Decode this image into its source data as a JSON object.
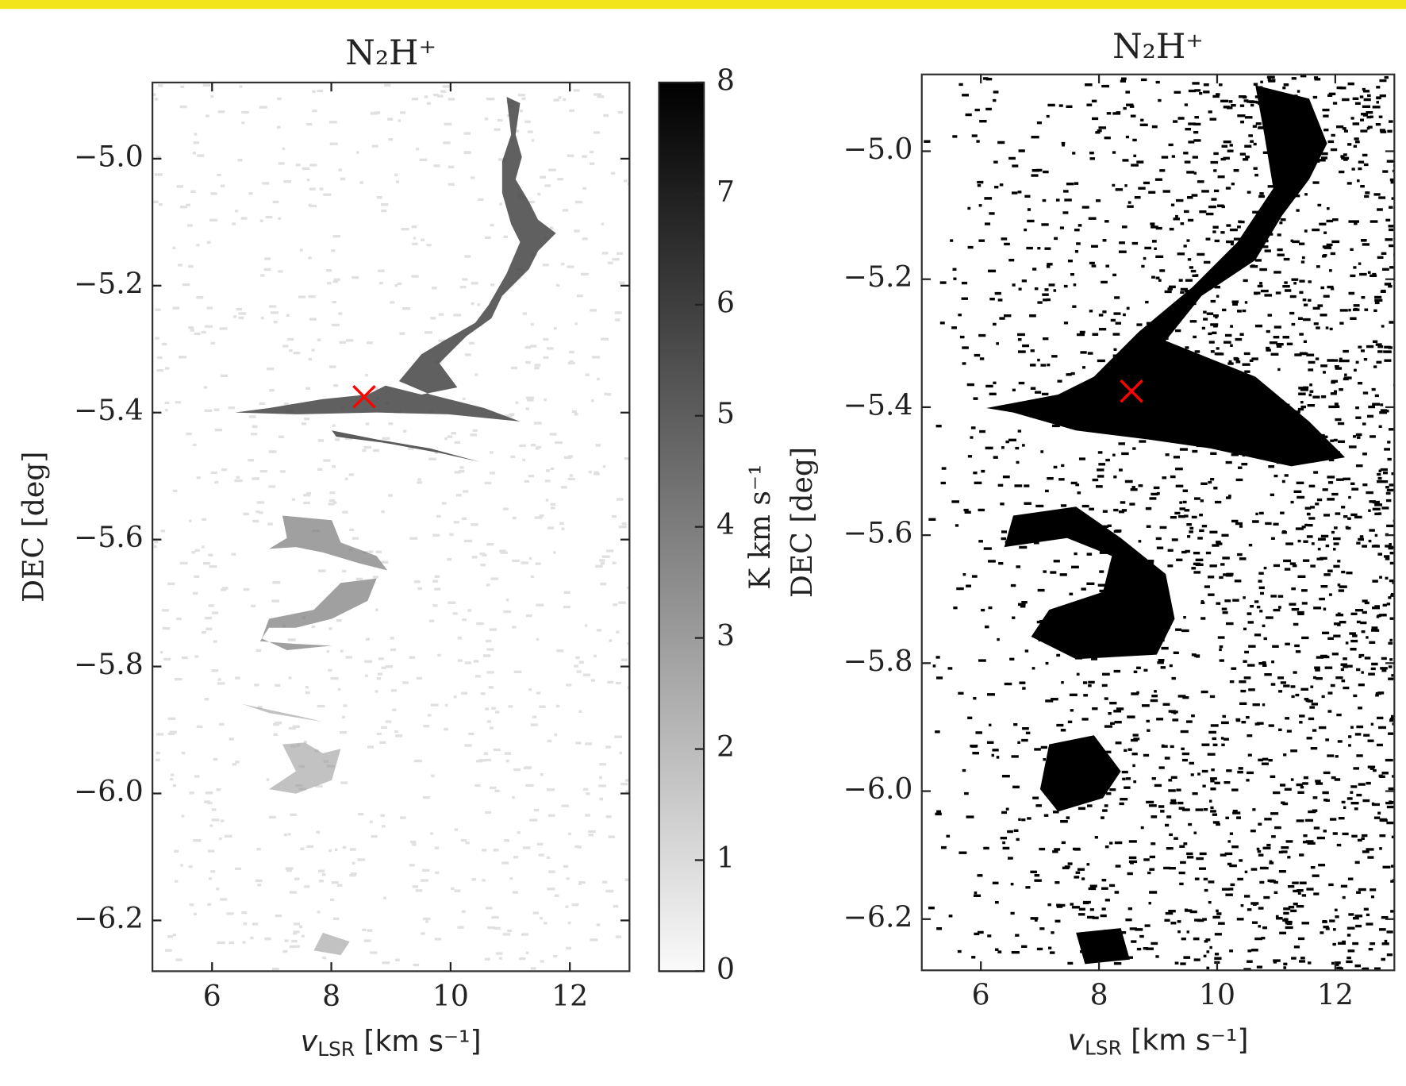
{
  "chart_data": [
    {
      "type": "image",
      "title": "N₂H⁺",
      "xlabel": {
        "symbol": "v",
        "subscript": "LSR",
        "unit": "[km s⁻¹]"
      },
      "ylabel": "DEC [deg]",
      "xlim": [
        5,
        13
      ],
      "ylim": [
        -6.28,
        -4.88
      ],
      "xticks": [
        6,
        8,
        10,
        12
      ],
      "yticks": [
        {
          "value": -5.0,
          "label": "−5.0"
        },
        {
          "value": -5.2,
          "label": "−5.2"
        },
        {
          "value": -5.4,
          "label": "−5.4"
        },
        {
          "value": -5.6,
          "label": "−5.6"
        },
        {
          "value": -5.8,
          "label": "−5.8"
        },
        {
          "value": -6.0,
          "label": "−6.0"
        },
        {
          "value": -6.2,
          "label": "−6.2"
        }
      ],
      "colorbar": {
        "label": "K km s⁻¹",
        "lim": [
          0,
          8
        ],
        "ticks": [
          0,
          1,
          2,
          3,
          4,
          5,
          6,
          7,
          8
        ]
      },
      "marker": {
        "x": 8.55,
        "y": -5.375,
        "color": "#ff0000"
      }
    },
    {
      "type": "image",
      "title": "N₂H⁺",
      "xlabel": {
        "symbol": "v",
        "subscript": "LSR",
        "unit": "[km s⁻¹]"
      },
      "ylabel": "DEC [deg]",
      "xlim": [
        5,
        13
      ],
      "ylim": [
        -6.28,
        -4.88
      ],
      "xticks": [
        6,
        8,
        10,
        12
      ],
      "yticks": [
        {
          "value": -5.0,
          "label": "−5.0"
        },
        {
          "value": -5.2,
          "label": "−5.2"
        },
        {
          "value": -5.4,
          "label": "−5.4"
        },
        {
          "value": -5.6,
          "label": "−5.6"
        },
        {
          "value": -5.8,
          "label": "−5.8"
        },
        {
          "value": -6.0,
          "label": "−6.0"
        },
        {
          "value": -6.2,
          "label": "−6.2"
        }
      ],
      "marker": {
        "x": 8.55,
        "y": -5.375,
        "color": "#ff0000"
      }
    }
  ]
}
